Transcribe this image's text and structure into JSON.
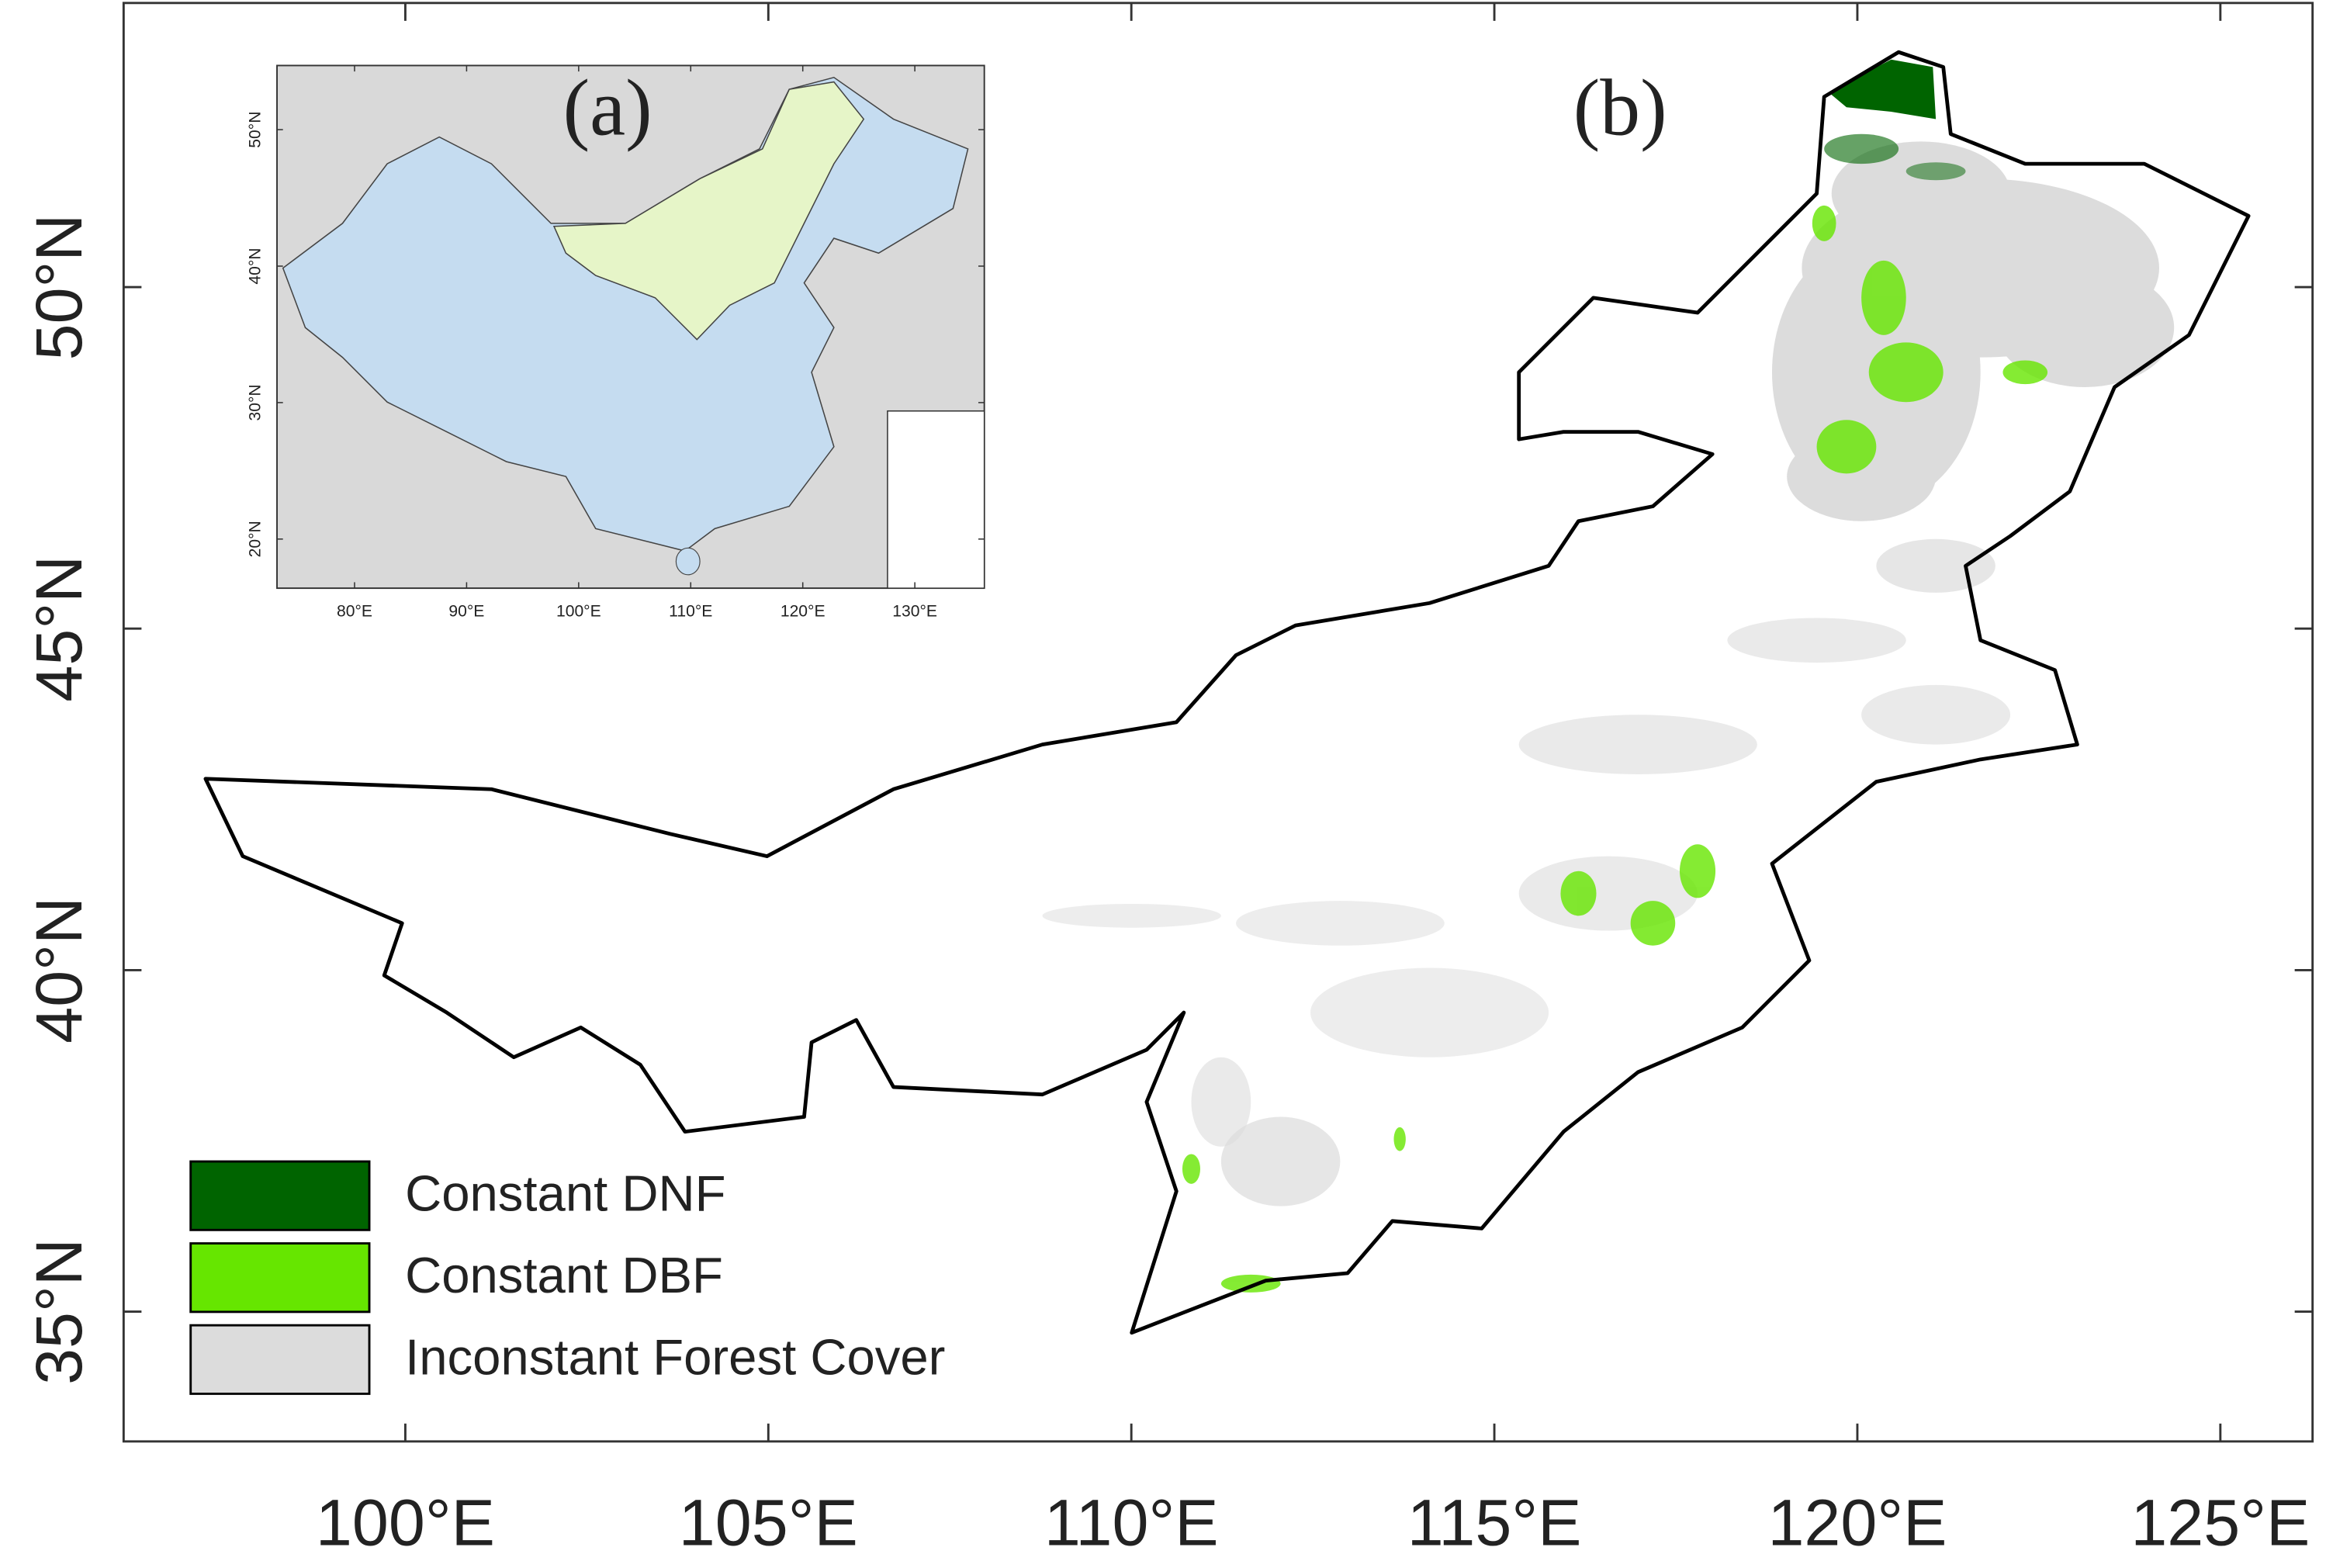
{
  "main_map": {
    "label": "(b)",
    "xlim": [
      96.12,
      126.27
    ],
    "ylim": [
      33.1,
      54.16
    ],
    "xticks": [
      {
        "value": 100,
        "label": "100°E"
      },
      {
        "value": 105,
        "label": "105°E"
      },
      {
        "value": 110,
        "label": "110°E"
      },
      {
        "value": 115,
        "label": "115°E"
      },
      {
        "value": 120,
        "label": "120°E"
      },
      {
        "value": 125,
        "label": "125°E"
      }
    ],
    "yticks": [
      {
        "value": 35,
        "label": "35°N"
      },
      {
        "value": 40,
        "label": "40°N"
      },
      {
        "value": 45,
        "label": "45°N"
      },
      {
        "value": 50,
        "label": "50°N"
      }
    ]
  },
  "inset_map": {
    "label": "(a)",
    "xlim": [
      73.08,
      136.2
    ],
    "ylim": [
      16.4,
      54.7
    ],
    "xticks": [
      {
        "value": 80,
        "label": "80°E"
      },
      {
        "value": 90,
        "label": "90°E"
      },
      {
        "value": 100,
        "label": "100°E"
      },
      {
        "value": 110,
        "label": "110°E"
      },
      {
        "value": 120,
        "label": "120°E"
      },
      {
        "value": 130,
        "label": "130°E"
      }
    ],
    "yticks": [
      {
        "value": 20,
        "label": "20°N"
      },
      {
        "value": 30,
        "label": "30°N"
      },
      {
        "value": 40,
        "label": "40°N"
      },
      {
        "value": 50,
        "label": "50°N"
      }
    ]
  },
  "legend": [
    {
      "name": "Constant DNF",
      "color": "#006400"
    },
    {
      "name": "Constant DBF",
      "color": "#66e600"
    },
    {
      "name": "Inconstant Forest Cover",
      "color": "#dcdcdc"
    }
  ]
}
